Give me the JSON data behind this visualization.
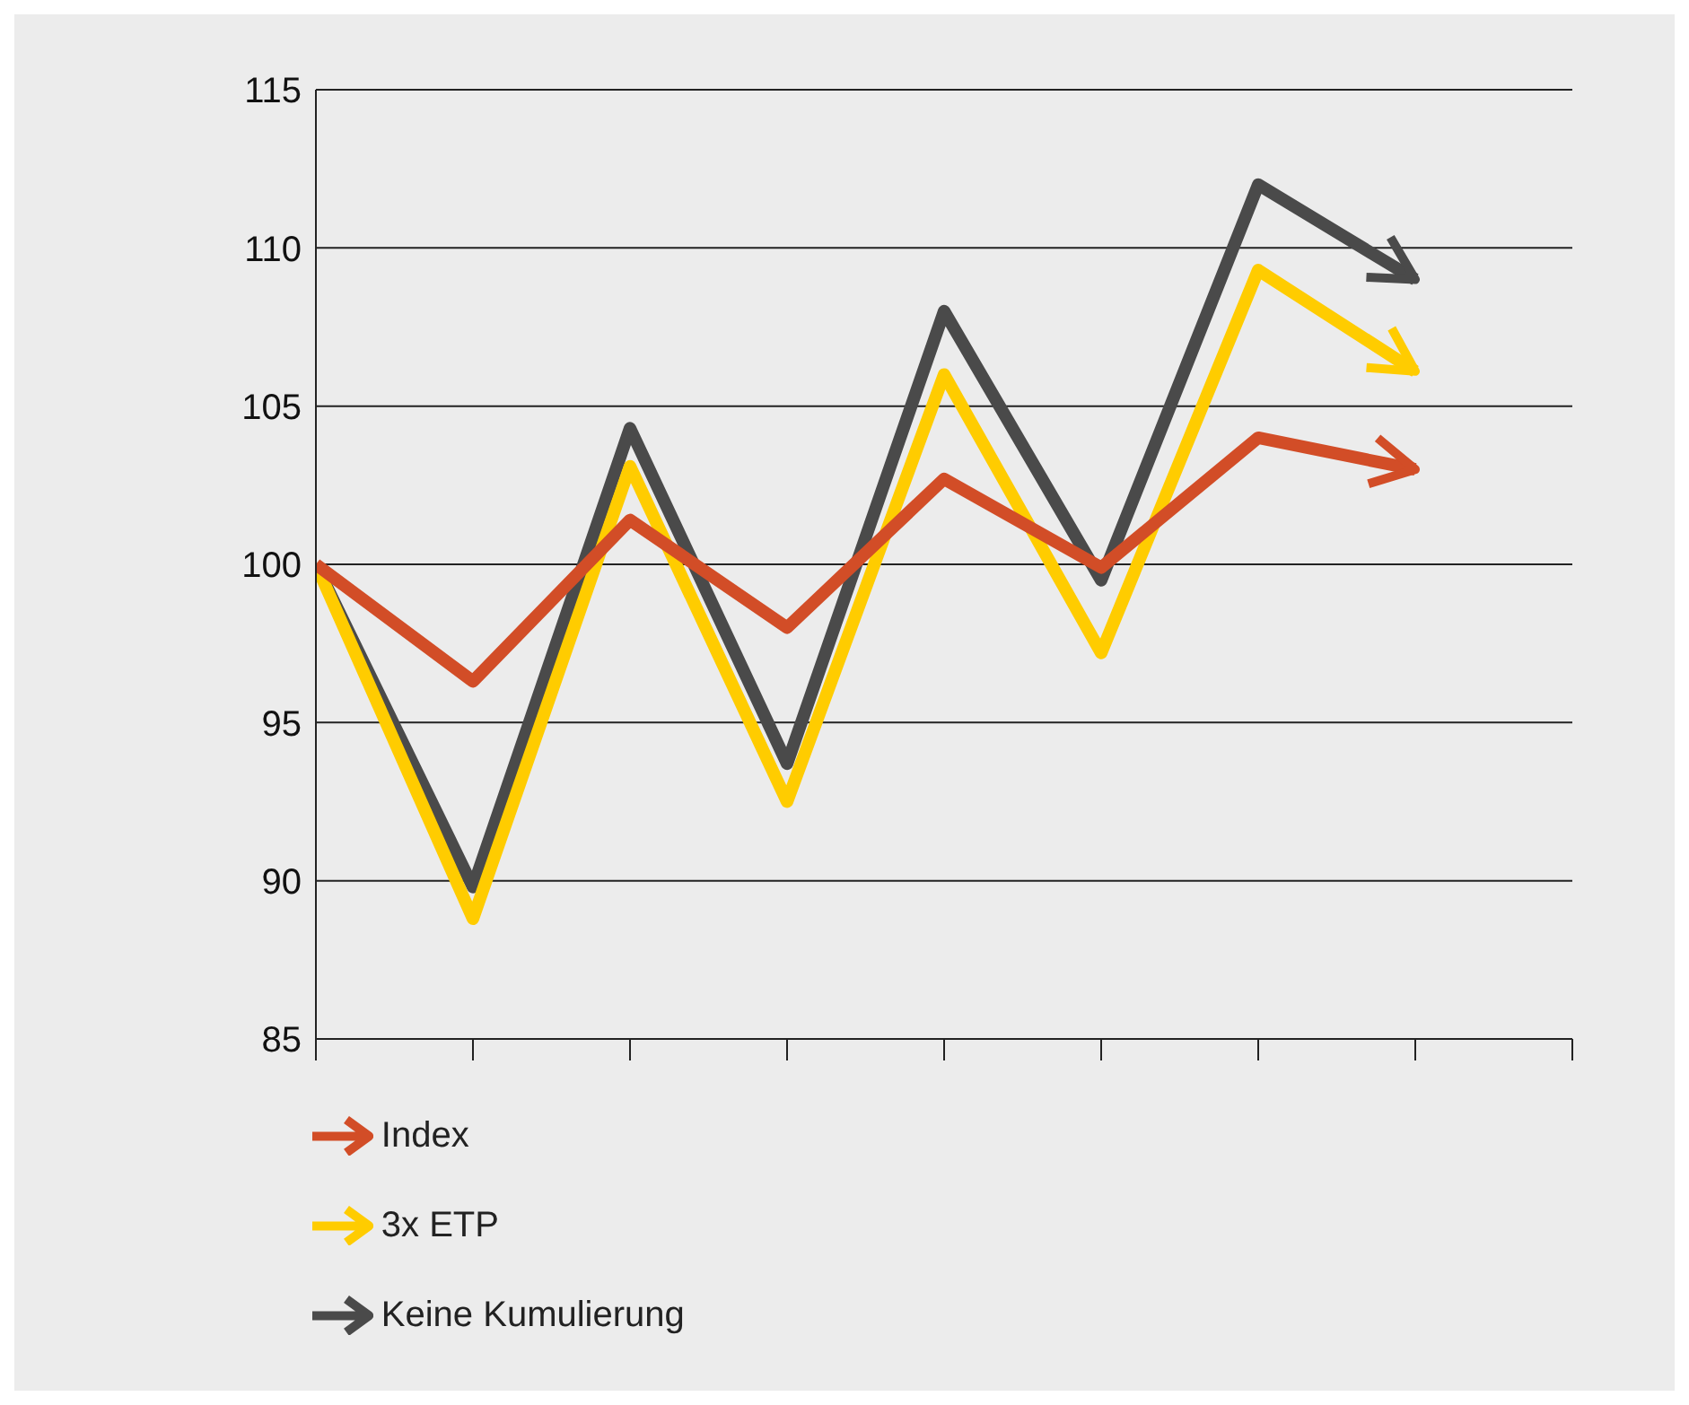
{
  "chart_data": {
    "type": "line",
    "categories": [
      null,
      null,
      null,
      null,
      null,
      null,
      null,
      null
    ],
    "series": [
      {
        "name": "Keine Kumulierung",
        "color": "#4a4a4a",
        "values": [
          100,
          89.8,
          104.3,
          93.7,
          108,
          99.5,
          112,
          109
        ]
      },
      {
        "name": "3x ETP",
        "color": "#ffcc00",
        "values": [
          100,
          88.8,
          103.1,
          92.5,
          106,
          97.2,
          109.3,
          106.1
        ]
      },
      {
        "name": "Index",
        "color": "#d24d27",
        "values": [
          100,
          96.3,
          101.4,
          98,
          102.7,
          99.9,
          104,
          103
        ]
      }
    ],
    "ylim": [
      85,
      115
    ],
    "yticks": [
      85,
      90,
      95,
      100,
      105,
      110,
      115
    ],
    "grid": "y",
    "legend": "bottom",
    "marker": "none",
    "line_style": "solid"
  }
}
